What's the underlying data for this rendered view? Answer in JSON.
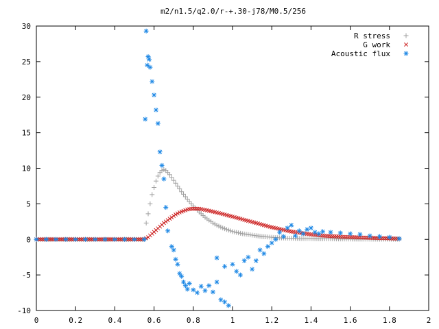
{
  "chart_data": {
    "type": "scatter",
    "title": "m2/n1.5/q2.0/r-+.30-j78/M0.5/256",
    "xlabel": "",
    "ylabel": "",
    "xlim": [
      0,
      2
    ],
    "ylim": [
      -10,
      30
    ],
    "xticks": [
      0,
      0.2,
      0.4,
      0.6,
      0.8,
      1,
      1.2,
      1.4,
      1.6,
      1.8,
      2
    ],
    "yticks": [
      -10,
      -5,
      0,
      5,
      10,
      15,
      20,
      25,
      30
    ],
    "xtick_labels": [
      "0",
      "0.2",
      "0.4",
      "0.6",
      "0.8",
      "1",
      "1.2",
      "1.4",
      "1.6",
      "1.8",
      "2"
    ],
    "ytick_labels": [
      "-10",
      "-5",
      "0",
      "5",
      "10",
      "15",
      "20",
      "25",
      "30"
    ],
    "grid": false,
    "legend_position": "top-right",
    "series": [
      {
        "name": "R stress",
        "marker": "plus",
        "color": "#a0a0a0",
        "points": [
          [
            0.0,
            0.0
          ],
          [
            0.1,
            0.0
          ],
          [
            0.2,
            0.0
          ],
          [
            0.3,
            0.0
          ],
          [
            0.4,
            0.0
          ],
          [
            0.5,
            0.0
          ],
          [
            0.55,
            0.0
          ],
          [
            0.56,
            2.3
          ],
          [
            0.57,
            3.6
          ],
          [
            0.58,
            5.0
          ],
          [
            0.59,
            6.3
          ],
          [
            0.6,
            7.3
          ],
          [
            0.61,
            8.2
          ],
          [
            0.62,
            8.9
          ],
          [
            0.63,
            9.4
          ],
          [
            0.64,
            9.7
          ],
          [
            0.65,
            9.8
          ],
          [
            0.66,
            9.7
          ],
          [
            0.67,
            9.4
          ],
          [
            0.68,
            9.1
          ],
          [
            0.69,
            8.7
          ],
          [
            0.7,
            8.3
          ],
          [
            0.72,
            7.5
          ],
          [
            0.74,
            6.7
          ],
          [
            0.76,
            6.0
          ],
          [
            0.78,
            5.3
          ],
          [
            0.8,
            4.7
          ],
          [
            0.82,
            4.1
          ],
          [
            0.84,
            3.6
          ],
          [
            0.86,
            3.1
          ],
          [
            0.88,
            2.7
          ],
          [
            0.9,
            2.3
          ],
          [
            0.92,
            2.0
          ],
          [
            0.95,
            1.6
          ],
          [
            0.98,
            1.3
          ],
          [
            1.0,
            1.1
          ],
          [
            1.05,
            0.8
          ],
          [
            1.1,
            0.6
          ],
          [
            1.15,
            0.4
          ],
          [
            1.2,
            0.3
          ],
          [
            1.25,
            0.2
          ],
          [
            1.3,
            0.15
          ],
          [
            1.35,
            0.12
          ],
          [
            1.4,
            0.1
          ],
          [
            1.45,
            0.08
          ],
          [
            1.5,
            0.07
          ],
          [
            1.55,
            0.06
          ],
          [
            1.6,
            0.05
          ],
          [
            1.65,
            0.04
          ],
          [
            1.7,
            0.03
          ],
          [
            1.75,
            0.03
          ],
          [
            1.8,
            0.02
          ],
          [
            1.85,
            0.02
          ]
        ]
      },
      {
        "name": "G work",
        "marker": "cross",
        "color": "#cc2222",
        "points": [
          [
            0.0,
            0.0
          ],
          [
            0.1,
            0.0
          ],
          [
            0.2,
            0.0
          ],
          [
            0.3,
            0.0
          ],
          [
            0.4,
            0.0
          ],
          [
            0.5,
            0.0
          ],
          [
            0.55,
            0.0
          ],
          [
            0.57,
            0.3
          ],
          [
            0.59,
            0.8
          ],
          [
            0.61,
            1.3
          ],
          [
            0.63,
            1.8
          ],
          [
            0.65,
            2.3
          ],
          [
            0.67,
            2.7
          ],
          [
            0.69,
            3.1
          ],
          [
            0.71,
            3.5
          ],
          [
            0.73,
            3.8
          ],
          [
            0.75,
            4.0
          ],
          [
            0.77,
            4.2
          ],
          [
            0.79,
            4.3
          ],
          [
            0.81,
            4.3
          ],
          [
            0.83,
            4.3
          ],
          [
            0.85,
            4.2
          ],
          [
            0.87,
            4.1
          ],
          [
            0.9,
            3.9
          ],
          [
            0.93,
            3.7
          ],
          [
            0.96,
            3.5
          ],
          [
            1.0,
            3.2
          ],
          [
            1.04,
            2.9
          ],
          [
            1.08,
            2.6
          ],
          [
            1.12,
            2.3
          ],
          [
            1.16,
            2.0
          ],
          [
            1.2,
            1.7
          ],
          [
            1.25,
            1.4
          ],
          [
            1.3,
            1.1
          ],
          [
            1.35,
            0.9
          ],
          [
            1.4,
            0.7
          ],
          [
            1.45,
            0.55
          ],
          [
            1.5,
            0.45
          ],
          [
            1.55,
            0.38
          ],
          [
            1.6,
            0.32
          ],
          [
            1.65,
            0.27
          ],
          [
            1.7,
            0.22
          ],
          [
            1.75,
            0.18
          ],
          [
            1.8,
            0.14
          ],
          [
            1.85,
            0.1
          ]
        ]
      },
      {
        "name": "Acoustic flux",
        "marker": "star",
        "color": "#1e88e5",
        "points": [
          [
            0.0,
            0.0
          ],
          [
            0.05,
            0.0
          ],
          [
            0.1,
            0.0
          ],
          [
            0.15,
            0.0
          ],
          [
            0.2,
            0.0
          ],
          [
            0.25,
            0.0
          ],
          [
            0.3,
            0.0
          ],
          [
            0.35,
            0.0
          ],
          [
            0.4,
            0.0
          ],
          [
            0.45,
            0.0
          ],
          [
            0.5,
            0.0
          ],
          [
            0.55,
            0.0
          ],
          [
            0.555,
            16.9
          ],
          [
            0.56,
            29.3
          ],
          [
            0.565,
            24.5
          ],
          [
            0.57,
            25.7
          ],
          [
            0.575,
            25.3
          ],
          [
            0.58,
            24.2
          ],
          [
            0.59,
            22.2
          ],
          [
            0.6,
            20.3
          ],
          [
            0.61,
            18.2
          ],
          [
            0.62,
            16.3
          ],
          [
            0.63,
            12.3
          ],
          [
            0.64,
            10.4
          ],
          [
            0.65,
            8.5
          ],
          [
            0.66,
            4.5
          ],
          [
            0.67,
            1.2
          ],
          [
            0.69,
            -1.0
          ],
          [
            0.7,
            -1.5
          ],
          [
            0.71,
            -2.8
          ],
          [
            0.72,
            -3.5
          ],
          [
            0.73,
            -4.8
          ],
          [
            0.74,
            -5.2
          ],
          [
            0.75,
            -6.0
          ],
          [
            0.76,
            -6.5
          ],
          [
            0.77,
            -7.0
          ],
          [
            0.78,
            -6.2
          ],
          [
            0.8,
            -7.1
          ],
          [
            0.82,
            -7.5
          ],
          [
            0.84,
            -6.6
          ],
          [
            0.86,
            -7.2
          ],
          [
            0.88,
            -6.5
          ],
          [
            0.9,
            -7.4
          ],
          [
            0.92,
            -6.0
          ],
          [
            0.94,
            -8.5
          ],
          [
            0.96,
            -8.8
          ],
          [
            0.98,
            -9.3
          ],
          [
            0.92,
            -2.6
          ],
          [
            0.96,
            -3.8
          ],
          [
            1.0,
            -3.5
          ],
          [
            1.02,
            -4.5
          ],
          [
            1.04,
            -5.0
          ],
          [
            1.06,
            -3.0
          ],
          [
            1.08,
            -2.5
          ],
          [
            1.1,
            -4.2
          ],
          [
            1.12,
            -3.0
          ],
          [
            1.14,
            -1.5
          ],
          [
            1.16,
            -2.0
          ],
          [
            1.18,
            -1.0
          ],
          [
            1.2,
            -0.5
          ],
          [
            1.22,
            0.0
          ],
          [
            1.24,
            1.0
          ],
          [
            1.26,
            0.4
          ],
          [
            1.28,
            1.6
          ],
          [
            1.3,
            2.0
          ],
          [
            1.32,
            0.5
          ],
          [
            1.34,
            1.2
          ],
          [
            1.36,
            0.8
          ],
          [
            1.38,
            1.4
          ],
          [
            1.4,
            1.6
          ],
          [
            1.42,
            1.0
          ],
          [
            1.44,
            0.8
          ],
          [
            1.46,
            1.1
          ],
          [
            1.5,
            1.0
          ],
          [
            1.55,
            0.9
          ],
          [
            1.6,
            0.8
          ],
          [
            1.65,
            0.7
          ],
          [
            1.7,
            0.5
          ],
          [
            1.75,
            0.4
          ],
          [
            1.8,
            0.3
          ],
          [
            1.85,
            0.1
          ]
        ]
      }
    ]
  }
}
